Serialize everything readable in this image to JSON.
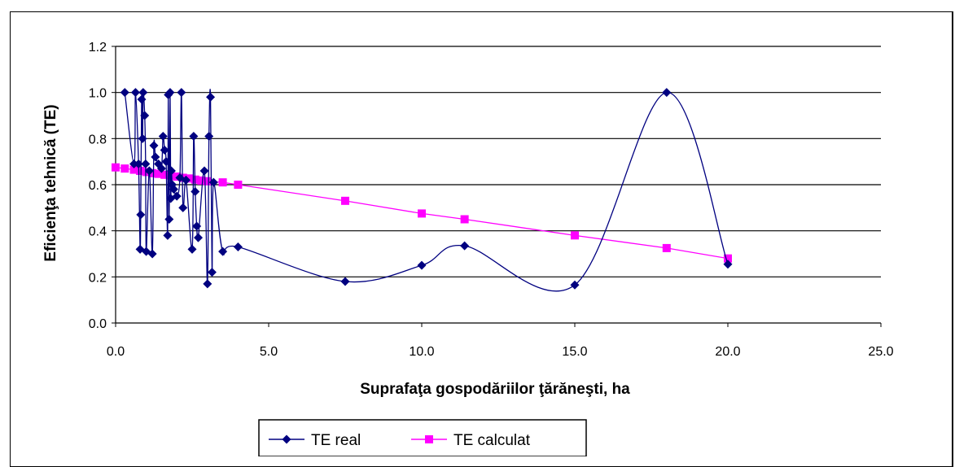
{
  "chart_data": {
    "type": "line",
    "xlabel": "Suprafaţa gospodăriilor ţărăneşti, ha",
    "ylabel": "Eficienţa tehnică (TE)",
    "xlim": [
      0,
      25
    ],
    "ylim": [
      0,
      1.2
    ],
    "x_ticks": [
      "0.0",
      "5.0",
      "10.0",
      "15.0",
      "20.0",
      "25.0"
    ],
    "y_ticks": [
      "0.0",
      "0.2",
      "0.4",
      "0.6",
      "0.8",
      "1.0",
      "1.2"
    ],
    "grid": "horizontal",
    "legend_position": "bottom",
    "series": [
      {
        "name": "TE real",
        "color": "#000080",
        "marker": "diamond",
        "smooth": true,
        "points": [
          [
            0.3,
            1.0
          ],
          [
            0.6,
            0.69
          ],
          [
            0.65,
            1.0
          ],
          [
            0.75,
            0.69
          ],
          [
            0.8,
            0.32
          ],
          [
            0.82,
            0.47
          ],
          [
            0.85,
            0.97
          ],
          [
            0.88,
            0.8
          ],
          [
            0.9,
            1.0
          ],
          [
            0.95,
            0.9
          ],
          [
            0.98,
            0.69
          ],
          [
            1.0,
            0.31
          ],
          [
            1.1,
            0.66
          ],
          [
            1.2,
            0.3
          ],
          [
            1.25,
            0.77
          ],
          [
            1.3,
            0.72
          ],
          [
            1.4,
            0.69
          ],
          [
            1.5,
            0.67
          ],
          [
            1.55,
            0.81
          ],
          [
            1.6,
            0.75
          ],
          [
            1.65,
            0.7
          ],
          [
            1.7,
            0.38
          ],
          [
            1.72,
            0.99
          ],
          [
            1.75,
            0.45
          ],
          [
            1.78,
            1.0
          ],
          [
            1.8,
            0.54
          ],
          [
            1.82,
            0.66
          ],
          [
            1.85,
            0.6
          ],
          [
            1.9,
            0.58
          ],
          [
            2.0,
            0.55
          ],
          [
            2.1,
            0.63
          ],
          [
            2.15,
            1.0
          ],
          [
            2.2,
            0.5
          ],
          [
            2.3,
            0.62
          ],
          [
            2.5,
            0.32
          ],
          [
            2.55,
            0.81
          ],
          [
            2.6,
            0.57
          ],
          [
            2.65,
            0.42
          ],
          [
            2.7,
            0.37
          ],
          [
            2.9,
            0.66
          ],
          [
            3.0,
            0.17
          ],
          [
            3.05,
            0.81
          ],
          [
            3.1,
            0.98
          ],
          [
            3.15,
            0.22
          ],
          [
            3.2,
            0.61
          ],
          [
            3.5,
            0.31
          ],
          [
            4.0,
            0.33
          ],
          [
            7.5,
            0.18
          ],
          [
            10.0,
            0.25
          ],
          [
            11.4,
            0.335
          ],
          [
            15.0,
            0.165
          ],
          [
            18.0,
            1.0
          ],
          [
            20.0,
            0.255
          ]
        ]
      },
      {
        "name": "TE calculat",
        "color": "#ff00ff",
        "marker": "square",
        "smooth": false,
        "points": [
          [
            0.0,
            0.675
          ],
          [
            0.3,
            0.67
          ],
          [
            0.6,
            0.665
          ],
          [
            0.8,
            0.66
          ],
          [
            1.0,
            0.655
          ],
          [
            1.2,
            0.65
          ],
          [
            1.4,
            0.647
          ],
          [
            1.6,
            0.643
          ],
          [
            1.8,
            0.64
          ],
          [
            2.0,
            0.635
          ],
          [
            2.2,
            0.63
          ],
          [
            2.4,
            0.627
          ],
          [
            2.6,
            0.622
          ],
          [
            2.8,
            0.618
          ],
          [
            3.0,
            0.615
          ],
          [
            3.5,
            0.61
          ],
          [
            4.0,
            0.6
          ],
          [
            7.5,
            0.53
          ],
          [
            10.0,
            0.475
          ],
          [
            11.4,
            0.45
          ],
          [
            15.0,
            0.38
          ],
          [
            18.0,
            0.325
          ],
          [
            20.0,
            0.28
          ]
        ]
      }
    ]
  }
}
